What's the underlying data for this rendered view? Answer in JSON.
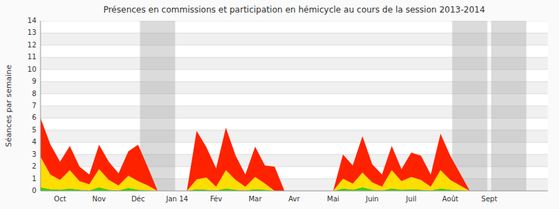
{
  "chart_data": {
    "type": "area",
    "stacked": true,
    "title": "Présences en commissions et participation en hémicycle au cours de la session 2013-2014",
    "ylabel": "Séances par semaine",
    "xlim": [
      0,
      13
    ],
    "ylim": [
      0,
      14
    ],
    "yticks": [
      0,
      1,
      2,
      3,
      4,
      5,
      6,
      7,
      8,
      9,
      10,
      11,
      12,
      13,
      14
    ],
    "xticks": [
      {
        "value": 0.5,
        "label": "Oct"
      },
      {
        "value": 1.5,
        "label": "Nov"
      },
      {
        "value": 2.5,
        "label": "Déc"
      },
      {
        "value": 3.5,
        "label": "Jan 14"
      },
      {
        "value": 4.5,
        "label": "Fév"
      },
      {
        "value": 5.5,
        "label": "Mar"
      },
      {
        "value": 6.5,
        "label": "Avr"
      },
      {
        "value": 7.5,
        "label": "Mai"
      },
      {
        "value": 8.5,
        "label": "Juin"
      },
      {
        "value": 9.5,
        "label": "Juil"
      },
      {
        "value": 10.5,
        "label": "Août"
      },
      {
        "value": 11.5,
        "label": "Sept"
      }
    ],
    "grid": true,
    "shaded_regions": {
      "color": "#999999",
      "ranges": [
        [
          2.55,
          3.45
        ],
        [
          10.55,
          11.45
        ],
        [
          11.55,
          12.45
        ]
      ]
    },
    "x": [
      0.0,
      0.25,
      0.5,
      0.75,
      1.0,
      1.25,
      1.5,
      1.75,
      2.0,
      2.25,
      2.5,
      2.75,
      3.0,
      3.25,
      3.5,
      3.75,
      4.0,
      4.25,
      4.5,
      4.75,
      5.0,
      5.25,
      5.5,
      5.75,
      6.0,
      6.25,
      6.5,
      6.75,
      7.0,
      7.25,
      7.5,
      7.75,
      8.0,
      8.25,
      8.5,
      8.75,
      9.0,
      9.25,
      9.5,
      9.75,
      10.0,
      10.25,
      10.5,
      11.0,
      11.25,
      12.0,
      12.25
    ],
    "series": [
      {
        "color": "#44cc00",
        "values": [
          0.3,
          0.15,
          0.1,
          0.2,
          0.1,
          0.05,
          0.3,
          0.1,
          0.05,
          0.25,
          0.1,
          0.05,
          0.0,
          0.0,
          0.0,
          0.0,
          0.15,
          0.1,
          0.05,
          0.2,
          0.1,
          0.05,
          0.15,
          0.1,
          0.0,
          0.0,
          0.0,
          0.0,
          0.0,
          0.0,
          0.0,
          0.2,
          0.1,
          0.3,
          0.1,
          0.05,
          0.2,
          0.1,
          0.15,
          0.1,
          0.05,
          0.2,
          0.1,
          0.0,
          0.0,
          0.0,
          0.0
        ]
      },
      {
        "color": "#ffdd00",
        "values": [
          2.5,
          1.2,
          0.8,
          1.5,
          0.7,
          0.5,
          1.5,
          0.8,
          0.4,
          1.0,
          0.7,
          0.4,
          0.0,
          0.0,
          0.0,
          0.0,
          0.8,
          1.0,
          0.3,
          1.5,
          0.8,
          0.3,
          1.0,
          0.5,
          0.0,
          0.0,
          0.0,
          0.0,
          0.0,
          0.0,
          0.0,
          0.8,
          0.5,
          1.2,
          0.6,
          0.3,
          1.5,
          0.7,
          1.0,
          0.8,
          0.3,
          1.5,
          0.8,
          0.0,
          0.0,
          0.0,
          0.0
        ]
      },
      {
        "color": "#ff2200",
        "values": [
          3.2,
          2.5,
          1.5,
          2.0,
          1.2,
          0.8,
          2.0,
          1.5,
          1.0,
          2.0,
          3.0,
          1.5,
          0.0,
          0.0,
          0.0,
          0.0,
          4.0,
          2.5,
          1.5,
          3.5,
          2.0,
          1.0,
          2.5,
          1.5,
          2.0,
          0.0,
          0.0,
          0.0,
          0.0,
          0.0,
          0.0,
          2.0,
          1.5,
          3.0,
          1.5,
          1.0,
          2.0,
          1.0,
          2.0,
          2.0,
          1.0,
          3.0,
          2.0,
          0.0,
          0.0,
          0.0,
          0.0
        ]
      }
    ]
  }
}
